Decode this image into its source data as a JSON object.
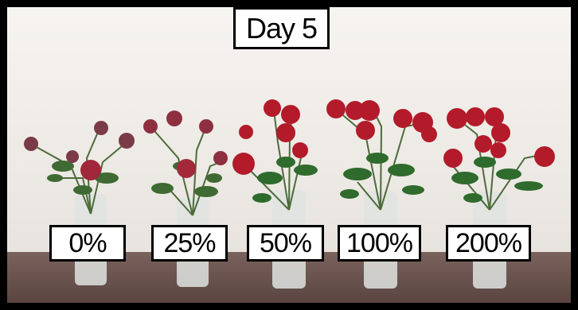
{
  "title": "Day 5",
  "concentration_labels": [
    "0%",
    "25%",
    "50%",
    "100%",
    "200%"
  ],
  "colors": {
    "border": "#000000",
    "label_background": "#ffffff",
    "wall": "#f1eeea",
    "tabletop": "#6a5450",
    "rose_red": "#b31b2a",
    "leaf_green": "#2f6b2c"
  }
}
